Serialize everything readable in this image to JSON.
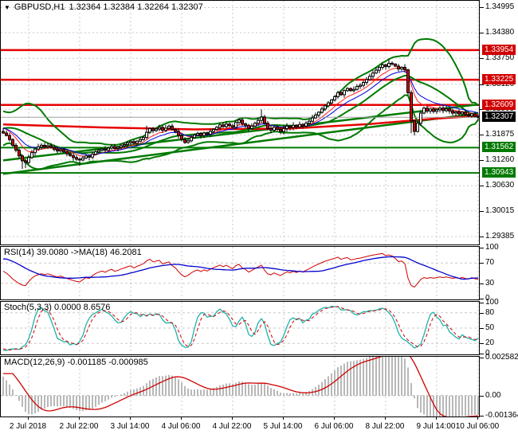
{
  "header": {
    "dropdown_icon": "▼",
    "symbol_period": "GBPUSD,H1",
    "quote_line": "1.32364 1.32384 1.32264 1.32307"
  },
  "colors": {
    "background": "#ffffff",
    "grid": "#c8c8c8",
    "panel_border": "#000000",
    "bull_fill": "#ffffff",
    "bear_fill": "#d60000",
    "candle_outline": "#000000",
    "resistance_line": "#e60000",
    "support_line": "#007a00",
    "band_line": "#007a00",
    "trend_ma_red": "#e60000",
    "fast_ma_red": "#ff2020",
    "fast_ma_blue": "#0000dd",
    "current_price_line": "#a0a0a0",
    "badge_red": "#d20000",
    "badge_green": "#007a00",
    "badge_black": "#000000",
    "rsi_line": "#d00000",
    "rsi_ma_line": "#0000cc",
    "stoch_k_line": "#1fb2aa",
    "stoch_d_line": "#d00000",
    "macd_hist": "#b8b8b8",
    "macd_signal": "#d00000"
  },
  "chart_data": {
    "type": "candlestick",
    "title": "GBPUSD,H1",
    "ylim": [
      1.2919,
      1.3516
    ],
    "price_axis_ticks": [
      1.34995,
      1.3438,
      1.3375,
      1.3312,
      1.32505,
      1.31875,
      1.3126,
      1.3063,
      1.30015,
      1.29385
    ],
    "levels": {
      "resistance": [
        1.33954,
        1.33225,
        1.32609
      ],
      "support": [
        1.31562,
        1.30943
      ],
      "current_price": 1.32307
    },
    "x_labels": [
      "2 Jul 2018",
      "2 Jul 22:00",
      "3 Jul 14:00",
      "4 Jul 06:00",
      "4 Jul 22:00",
      "5 Jul 14:00",
      "6 Jul 06:00",
      "8 Jul 22:00",
      "9 Jul 14:00",
      "10 Jul 06:00"
    ],
    "grid_indices": [
      8,
      24,
      40,
      56,
      72,
      88,
      104,
      120,
      136,
      149
    ],
    "trendlines": [
      {
        "p_start": 1.3092,
        "p_end": 1.324
      },
      {
        "p_start": 1.3125,
        "p_end": 1.3262
      }
    ],
    "trend_ma_anchors": [
      [
        0,
        1.3213
      ],
      [
        30,
        1.3206
      ],
      [
        60,
        1.3201
      ],
      [
        90,
        1.3203
      ],
      [
        115,
        1.3214
      ],
      [
        135,
        1.3227
      ],
      [
        149,
        1.3234
      ]
    ],
    "bollinger": {
      "period": 20,
      "deviation": 2
    },
    "price_mas": {
      "fast_red_period": 8,
      "fast_blue_period": 13
    },
    "series": {
      "warmup_close": [
        1.3125,
        1.3131,
        1.3137,
        1.3133,
        1.314,
        1.3146,
        1.3152,
        1.3148,
        1.3155,
        1.3161,
        1.3167,
        1.3163,
        1.317,
        1.3176,
        1.3182,
        1.3188,
        1.3194,
        1.32,
        1.3206,
        1.3212,
        1.3218,
        1.3226,
        1.3234,
        1.324,
        1.3232,
        1.3222,
        1.3212,
        1.3205,
        1.32,
        1.3196
      ],
      "close": [
        1.3192,
        1.3186,
        1.3176,
        1.3162,
        1.315,
        1.3136,
        1.3124,
        1.312,
        1.3132,
        1.3144,
        1.3153,
        1.3158,
        1.3162,
        1.3158,
        1.3161,
        1.3157,
        1.3152,
        1.3148,
        1.3151,
        1.3146,
        1.3141,
        1.3137,
        1.3132,
        1.3128,
        1.3126,
        1.3131,
        1.3136,
        1.3133,
        1.314,
        1.3146,
        1.315,
        1.3153,
        1.315,
        1.3155,
        1.3159,
        1.3154,
        1.3157,
        1.3161,
        1.3164,
        1.3168,
        1.3171,
        1.3167,
        1.3172,
        1.3176,
        1.3181,
        1.3194,
        1.3203,
        1.3198,
        1.3202,
        1.3206,
        1.3199,
        1.3204,
        1.3209,
        1.3201,
        1.3196,
        1.3186,
        1.3176,
        1.3169,
        1.3173,
        1.3181,
        1.3187,
        1.3191,
        1.3186,
        1.3192,
        1.3189,
        1.3196,
        1.3201,
        1.3206,
        1.3212,
        1.3208,
        1.3214,
        1.321,
        1.3206,
        1.3218,
        1.3224,
        1.3215,
        1.3211,
        1.3203,
        1.3209,
        1.3216,
        1.3223,
        1.3231,
        1.3216,
        1.3203,
        1.3199,
        1.3206,
        1.3201,
        1.3196,
        1.3203,
        1.3209,
        1.3206,
        1.3211,
        1.3207,
        1.3213,
        1.3209,
        1.3216,
        1.3221,
        1.3229,
        1.3236,
        1.3243,
        1.3251,
        1.3259,
        1.3266,
        1.3273,
        1.3281,
        1.3291,
        1.3286,
        1.3296,
        1.3301,
        1.3296,
        1.3299,
        1.3306,
        1.3309,
        1.3316,
        1.3323,
        1.3331,
        1.3339,
        1.3346,
        1.3353,
        1.3359,
        1.3355,
        1.3363,
        1.3361,
        1.3356,
        1.3349,
        1.3353,
        1.3347,
        1.3291,
        1.3222,
        1.3196,
        1.3216,
        1.3241,
        1.3253,
        1.3246,
        1.3251,
        1.3245,
        1.3249,
        1.3253,
        1.3247,
        1.3251,
        1.3246,
        1.3241,
        1.3244,
        1.3239,
        1.3243,
        1.3237,
        1.3234,
        1.3239,
        1.3233,
        1.32307
      ],
      "wick_low_overrides": {
        "6": 1.3104,
        "7": 1.3106,
        "24": 1.3112,
        "128": 1.3192,
        "129": 1.3186
      },
      "wick_high_overrides": {
        "45": 1.321,
        "81": 1.325,
        "121": 1.3372
      }
    },
    "indicators": {
      "rsi": {
        "label": "RSI(14) 39.0080 ->MA(18) 46.2081",
        "period": 14,
        "ma_period": 18,
        "last_value": 39.008,
        "last_ma_value": 46.2081,
        "levels": [
          70,
          30
        ],
        "axis": [
          "100",
          "70",
          "30",
          "0"
        ],
        "range": [
          0,
          100
        ]
      },
      "stoch": {
        "label": "Stoch(5,3,3) 0.0000 8.6576",
        "k_period": 5,
        "slowing": 3,
        "d_period": 3,
        "last_value": 0.0,
        "last_signal": 8.6576,
        "levels": [
          80,
          50,
          20
        ],
        "axis": [
          "100",
          "80",
          "50",
          "20",
          "0"
        ],
        "range": [
          0,
          100
        ]
      },
      "macd": {
        "label": "MACD(12,26,9) -0.001185 -0.000985",
        "fast": 12,
        "slow": 26,
        "signal": 9,
        "last_value": -0.001185,
        "last_signal": -0.000985,
        "levels": [
          0
        ],
        "axis": [
          "0.002582",
          "0.00",
          "-0.001364"
        ],
        "range": [
          -0.001364,
          0.002582
        ]
      }
    }
  }
}
